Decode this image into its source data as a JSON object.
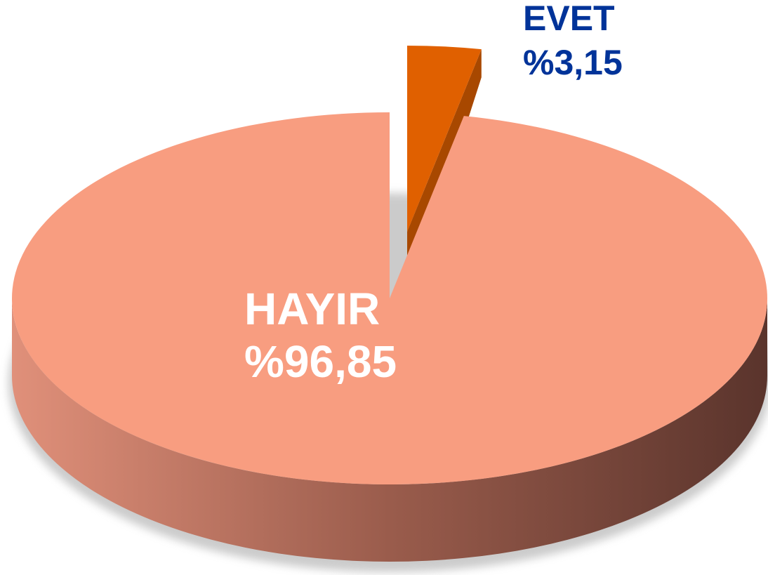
{
  "chart_data": {
    "type": "pie",
    "categories": [
      "EVET",
      "HAYIR"
    ],
    "values": [
      3.15,
      96.85
    ],
    "value_labels": [
      "%3,15",
      "%96,85"
    ],
    "colors": [
      "#e06000",
      "#f89d80"
    ]
  }
}
